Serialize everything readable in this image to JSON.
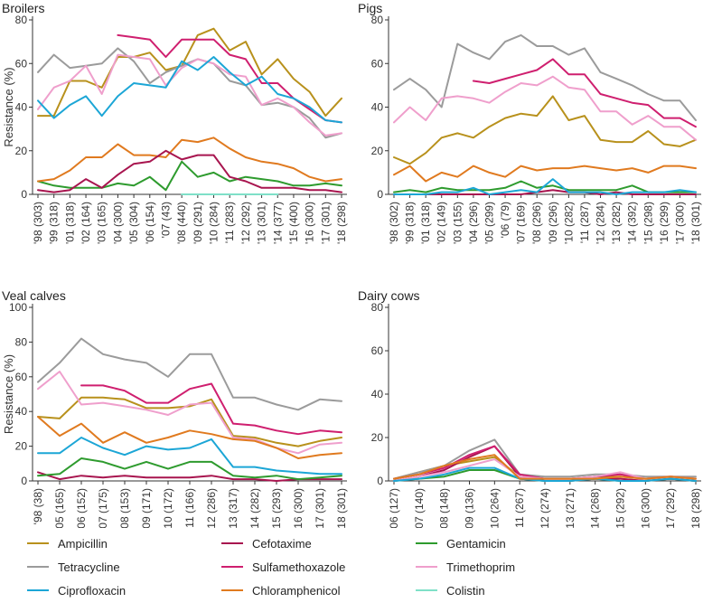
{
  "chart_data": [
    {
      "type": "line",
      "title": "Broilers",
      "ylabel": "Resistance (%)",
      "ylim": [
        0,
        80
      ],
      "yticks": [
        0,
        20,
        40,
        60,
        80
      ],
      "categories": [
        "'98 (303)",
        "'99 (318)",
        "'01 (318)",
        "'02 (164)",
        "'03 (165)",
        "'04 (300)",
        "'05 (304)",
        "'06 (154)",
        "'07 (43)",
        "'08 (440)",
        "'09 (291)",
        "'10 (284)",
        "'11 (283)",
        "'12 (292)",
        "'13 (301)",
        "'14 (377)",
        "'15 (400)",
        "'16 (300)",
        "'17 (301)",
        "'18 (298)"
      ],
      "series": [
        {
          "name": "Ampicillin",
          "values": [
            36,
            36,
            52,
            52,
            49,
            63,
            63,
            65,
            57,
            59,
            73,
            76,
            66,
            70,
            55,
            62,
            53,
            47,
            36,
            44
          ]
        },
        {
          "name": "Cefotaxime",
          "values": [
            null,
            null,
            null,
            null,
            null,
            null,
            null,
            null,
            null,
            null,
            null,
            null,
            null,
            null,
            null,
            null,
            null,
            null,
            null,
            null
          ]
        },
        {
          "name": "Gentamicin",
          "values": [
            6,
            4,
            3,
            3,
            3,
            5,
            4,
            8,
            2,
            15,
            8,
            10,
            6,
            8,
            7,
            6,
            4,
            4,
            5,
            4
          ]
        },
        {
          "name": "Tetracycline",
          "values": [
            56,
            64,
            58,
            59,
            60,
            67,
            61,
            51,
            56,
            59,
            62,
            60,
            52,
            50,
            41,
            42,
            40,
            35,
            26,
            28
          ]
        },
        {
          "name": "Sulfamethoxazole",
          "values": [
            null,
            null,
            null,
            null,
            null,
            73,
            72,
            71,
            63,
            71,
            71,
            71,
            64,
            62,
            51,
            51,
            44,
            39,
            34,
            33
          ]
        },
        {
          "name": "Trimethoprim",
          "values": [
            39,
            49,
            52,
            59,
            46,
            64,
            63,
            62,
            50,
            58,
            62,
            60,
            55,
            54,
            41,
            44,
            40,
            33,
            27,
            28
          ]
        },
        {
          "name": "Ciprofloxacin",
          "values": [
            43,
            35,
            41,
            45,
            36,
            45,
            51,
            50,
            49,
            61,
            57,
            63,
            56,
            50,
            54,
            46,
            44,
            40,
            34,
            33
          ]
        },
        {
          "name": "Chloramphenicol",
          "values": [
            6,
            7,
            11,
            17,
            17,
            23,
            18,
            18,
            17,
            25,
            24,
            26,
            21,
            17,
            15,
            14,
            12,
            8,
            6,
            7
          ]
        },
        {
          "name": "Colistin",
          "values": [
            null,
            null,
            null,
            null,
            null,
            null,
            null,
            null,
            null,
            0,
            0,
            0,
            0,
            0,
            0,
            0,
            null,
            null,
            null,
            null
          ]
        },
        {
          "name": "Cefotaxime",
          "values": [
            2,
            1,
            2,
            7,
            3,
            9,
            14,
            15,
            20,
            16,
            18,
            18,
            8,
            6,
            3,
            3,
            3,
            2,
            2,
            1
          ]
        }
      ]
    },
    {
      "type": "line",
      "title": "Pigs",
      "ylabel": "",
      "ylim": [
        0,
        80
      ],
      "yticks": [
        0,
        20,
        40,
        60,
        80
      ],
      "categories": [
        "'98 (302)",
        "'99 (318)",
        "'01 (318)",
        "'02 (149)",
        "'03 (155)",
        "'04 (296)",
        "'05 (299)",
        "'06 (79)",
        "'07 (169)",
        "'08 (296)",
        "'09 (296)",
        "'10 (282)",
        "'11 (287)",
        "'12 (284)",
        "'13 (282)",
        "'14 (392)",
        "'15 (298)",
        "'16 (299)",
        "'17 (300)",
        "'18 (301)"
      ],
      "series": [
        {
          "name": "Ampicillin",
          "values": [
            17,
            14,
            19,
            26,
            28,
            26,
            31,
            35,
            37,
            36,
            45,
            34,
            36,
            25,
            24,
            24,
            29,
            23,
            22,
            25
          ]
        },
        {
          "name": "Cefotaxime",
          "values": [
            0,
            0,
            0,
            0,
            0,
            0,
            0,
            0,
            0,
            1,
            2,
            1,
            1,
            0,
            1,
            0,
            0,
            0,
            0,
            0
          ]
        },
        {
          "name": "Gentamicin",
          "values": [
            1,
            2,
            1,
            3,
            2,
            2,
            2,
            3,
            6,
            3,
            4,
            2,
            2,
            2,
            2,
            4,
            1,
            1,
            1,
            1
          ]
        },
        {
          "name": "Tetracycline",
          "values": [
            48,
            53,
            48,
            40,
            69,
            65,
            62,
            70,
            73,
            68,
            68,
            64,
            67,
            56,
            53,
            50,
            46,
            43,
            43,
            34
          ]
        },
        {
          "name": "Sulfamethoxazole",
          "values": [
            null,
            null,
            null,
            null,
            null,
            52,
            51,
            53,
            55,
            57,
            62,
            55,
            55,
            46,
            44,
            42,
            41,
            35,
            35,
            31
          ]
        },
        {
          "name": "Trimethoprim",
          "values": [
            33,
            40,
            34,
            44,
            45,
            44,
            42,
            47,
            51,
            50,
            54,
            49,
            48,
            38,
            38,
            32,
            36,
            31,
            31,
            25
          ]
        },
        {
          "name": "Ciprofloxacin",
          "values": [
            0,
            0,
            0,
            1,
            1,
            3,
            0,
            1,
            2,
            1,
            7,
            1,
            1,
            1,
            0,
            1,
            1,
            1,
            2,
            1
          ]
        },
        {
          "name": "Chloramphenicol",
          "values": [
            9,
            13,
            6,
            10,
            8,
            13,
            10,
            8,
            13,
            11,
            12,
            12,
            13,
            12,
            11,
            12,
            10,
            13,
            13,
            12
          ]
        },
        {
          "name": "Colistin",
          "values": [
            null,
            null,
            null,
            null,
            null,
            null,
            null,
            null,
            null,
            null,
            null,
            null,
            null,
            null,
            null,
            null,
            null,
            null,
            null,
            null
          ]
        }
      ]
    },
    {
      "type": "line",
      "title": "Veal calves",
      "ylabel": "Resistance (%)",
      "ylim": [
        0,
        100
      ],
      "yticks": [
        0,
        20,
        40,
        60,
        80,
        100
      ],
      "categories": [
        "'98 (38)",
        "'05 (165)",
        "'06 (152)",
        "'07 (175)",
        "'08 (153)",
        "'09 (171)",
        "'10 (172)",
        "'11 (166)",
        "'12 (286)",
        "'13 (317)",
        "'14 (282)",
        "'15 (293)",
        "'16 (300)",
        "'17 (301)",
        "'18 (301)"
      ],
      "series": [
        {
          "name": "Ampicillin",
          "values": [
            37,
            36,
            48,
            48,
            47,
            42,
            42,
            43,
            47,
            26,
            25,
            22,
            20,
            23,
            25
          ]
        },
        {
          "name": "Cefotaxime",
          "values": [
            5,
            1,
            3,
            2,
            3,
            2,
            2,
            2,
            3,
            1,
            1,
            0,
            1,
            1,
            1
          ]
        },
        {
          "name": "Gentamicin",
          "values": [
            3,
            4,
            13,
            11,
            7,
            11,
            7,
            11,
            11,
            3,
            2,
            3,
            1,
            2,
            3
          ]
        },
        {
          "name": "Tetracycline",
          "values": [
            57,
            68,
            82,
            73,
            70,
            68,
            60,
            73,
            73,
            48,
            48,
            44,
            41,
            47,
            46
          ]
        },
        {
          "name": "Sulfamethoxazole",
          "values": [
            null,
            null,
            55,
            55,
            52,
            45,
            45,
            53,
            56,
            33,
            32,
            29,
            27,
            29,
            28
          ]
        },
        {
          "name": "Trimethoprim",
          "values": [
            53,
            63,
            44,
            45,
            43,
            41,
            38,
            44,
            45,
            25,
            24,
            19,
            16,
            21,
            22
          ]
        },
        {
          "name": "Ciprofloxacin",
          "values": [
            16,
            16,
            25,
            19,
            15,
            20,
            18,
            19,
            24,
            8,
            8,
            6,
            5,
            4,
            4
          ]
        },
        {
          "name": "Chloramphenicol",
          "values": [
            37,
            26,
            33,
            22,
            28,
            22,
            25,
            29,
            27,
            24,
            23,
            19,
            13,
            15,
            16
          ]
        },
        {
          "name": "Colistin",
          "values": [
            null,
            null,
            null,
            null,
            null,
            null,
            null,
            null,
            null,
            null,
            null,
            null,
            null,
            null,
            null
          ]
        }
      ]
    },
    {
      "type": "line",
      "title": "Dairy cows",
      "ylabel": "",
      "ylim": [
        0,
        80
      ],
      "yticks": [
        0,
        20,
        40,
        60,
        80
      ],
      "categories": [
        "'06 (127)",
        "'07 (140)",
        "'08 (148)",
        "'09 (136)",
        "'10 (264)",
        "'11 (267)",
        "'12 (274)",
        "'13 (271)",
        "'14 (268)",
        "'15 (292)",
        "'16 (300)",
        "'17 (292)",
        "'18 (298)"
      ],
      "series": [
        {
          "name": "Ampicillin",
          "values": [
            1,
            4,
            7,
            9,
            11,
            2,
            1,
            1,
            2,
            2,
            1,
            2,
            1
          ]
        },
        {
          "name": "Cefotaxime",
          "values": [
            0,
            2,
            5,
            11,
            16,
            2,
            0,
            0,
            1,
            1,
            0,
            1,
            0
          ]
        },
        {
          "name": "Gentamicin",
          "values": [
            0,
            1,
            2,
            5,
            5,
            1,
            0,
            0,
            1,
            0,
            0,
            1,
            0
          ]
        },
        {
          "name": "Tetracycline",
          "values": [
            1,
            4,
            7,
            14,
            19,
            3,
            2,
            2,
            3,
            3,
            2,
            2,
            2
          ]
        },
        {
          "name": "Sulfamethoxazole",
          "values": [
            1,
            3,
            6,
            12,
            16,
            3,
            1,
            1,
            2,
            3,
            1,
            2,
            1
          ]
        },
        {
          "name": "Trimethoprim",
          "values": [
            0,
            2,
            4,
            7,
            10,
            2,
            1,
            1,
            2,
            4,
            1,
            2,
            1
          ]
        },
        {
          "name": "Ciprofloxacin",
          "values": [
            0,
            1,
            3,
            6,
            6,
            1,
            0,
            0,
            1,
            0,
            0,
            1,
            0
          ]
        },
        {
          "name": "Chloramphenicol",
          "values": [
            1,
            3,
            7,
            10,
            12,
            1,
            1,
            1,
            1,
            2,
            1,
            2,
            1
          ]
        },
        {
          "name": "Colistin",
          "values": [
            null,
            null,
            null,
            null,
            null,
            null,
            null,
            null,
            null,
            null,
            null,
            null,
            null
          ]
        }
      ]
    }
  ],
  "colors": {
    "Ampicillin": "#b8911c",
    "Cefotaxime": "#a8154f",
    "Gentamicin": "#2e9b2e",
    "Tetracycline": "#9b9b9b",
    "Sulfamethoxazole": "#cf1f6f",
    "Trimethoprim": "#ef9fcc",
    "Ciprofloxacin": "#1ca6d6",
    "Chloramphenicol": "#e07a1f",
    "Colistin": "#7fe0c8"
  },
  "legend": [
    {
      "name": "Ampicillin"
    },
    {
      "name": "Cefotaxime"
    },
    {
      "name": "Gentamicin"
    },
    {
      "name": "Tetracycline"
    },
    {
      "name": "Sulfamethoxazole"
    },
    {
      "name": "Trimethoprim"
    },
    {
      "name": "Ciprofloxacin"
    },
    {
      "name": "Chloramphenicol"
    },
    {
      "name": "Colistin"
    }
  ]
}
